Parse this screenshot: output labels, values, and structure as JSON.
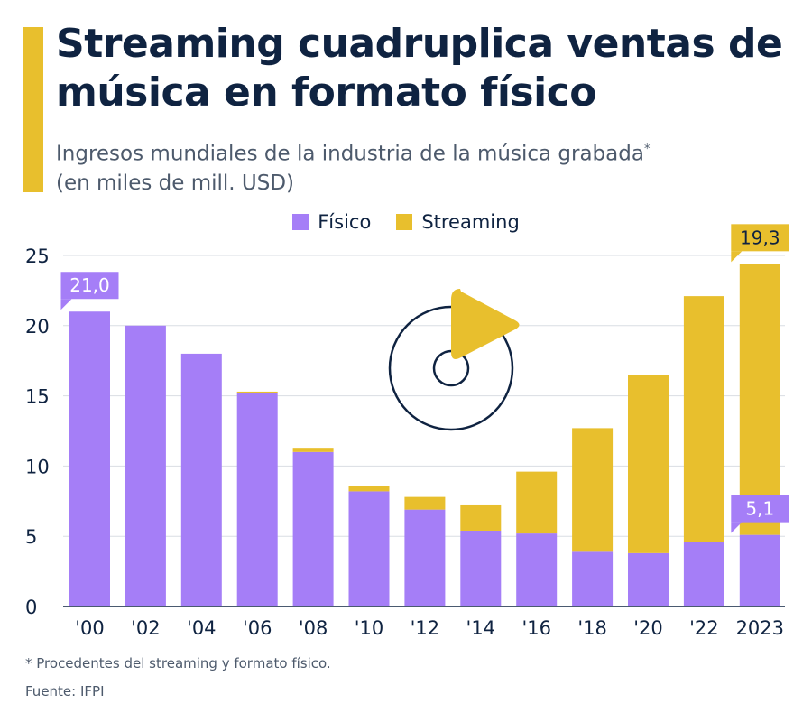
{
  "title": "Streaming cuadruplica ventas de música en formato físico",
  "subtitle_main": "Ingresos mundiales de la industria de la música grabada",
  "subtitle_mark": "*",
  "subtitle_units": "(en miles de mill. USD)",
  "footnote": "* Procedentes del streaming y formato físico.",
  "source": "Fuente: IFPI",
  "colors": {
    "accent": "#e8bf2d",
    "fisico": "#a57ef7",
    "streaming": "#e8bf2d",
    "title": "#0f2341",
    "text": "#4d5a6c",
    "grid": "#d9dde3"
  },
  "icon": "vinyl-disc-play-icon",
  "chart_data": {
    "type": "bar",
    "stacked": true,
    "categories": [
      "'00",
      "'02",
      "'04",
      "'06",
      "'08",
      "'10",
      "'12",
      "'14",
      "'16",
      "'18",
      "'20",
      "'22",
      "2023"
    ],
    "series": [
      {
        "name": "Físico",
        "values": [
          21.0,
          20.0,
          18.0,
          15.2,
          11.0,
          8.2,
          6.9,
          5.4,
          5.2,
          3.9,
          3.8,
          4.6,
          5.1
        ]
      },
      {
        "name": "Streaming",
        "values": [
          0.0,
          0.0,
          0.0,
          0.1,
          0.3,
          0.4,
          0.9,
          1.8,
          4.4,
          8.8,
          12.7,
          17.5,
          19.3
        ]
      }
    ],
    "ylim": [
      0,
      25
    ],
    "yticks": [
      0,
      5,
      10,
      15,
      20,
      25
    ],
    "grid": true,
    "legend_position": "top",
    "callouts": [
      {
        "category_index": 0,
        "series": "Físico",
        "label": "21,0"
      },
      {
        "category_index": 12,
        "series": "Streaming",
        "label": "19,3"
      },
      {
        "category_index": 12,
        "series": "Físico",
        "label": "5,1"
      }
    ]
  }
}
